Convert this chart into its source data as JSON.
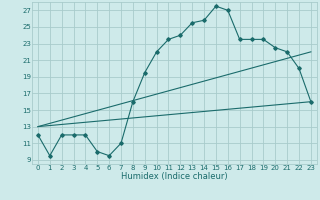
{
  "xlabel": "Humidex (Indice chaleur)",
  "bg_color": "#ceeaea",
  "grid_color": "#a8cccc",
  "line_color": "#1a6b6b",
  "xlim": [
    -0.5,
    23.5
  ],
  "ylim": [
    8.5,
    28
  ],
  "xticks": [
    0,
    1,
    2,
    3,
    4,
    5,
    6,
    7,
    8,
    9,
    10,
    11,
    12,
    13,
    14,
    15,
    16,
    17,
    18,
    19,
    20,
    21,
    22,
    23
  ],
  "yticks": [
    9,
    11,
    13,
    15,
    17,
    19,
    21,
    23,
    25,
    27
  ],
  "line1_x": [
    0,
    1,
    2,
    3,
    4,
    5,
    6,
    7,
    8,
    9,
    10,
    11,
    12,
    13,
    14,
    15,
    16,
    17,
    18,
    19,
    20,
    21,
    22,
    23
  ],
  "line1_y": [
    12,
    9.5,
    12,
    12,
    12,
    10,
    9.5,
    11,
    16,
    19.5,
    22,
    23.5,
    24,
    25.5,
    25.8,
    27.5,
    27,
    23.5,
    23.5,
    23.5,
    22.5,
    22,
    20,
    16
  ],
  "line2_x": [
    0,
    23
  ],
  "line2_y": [
    13,
    16
  ],
  "line3_x": [
    0,
    23
  ],
  "line3_y": [
    13,
    22
  ],
  "xlabel_fontsize": 6,
  "tick_fontsize": 5
}
